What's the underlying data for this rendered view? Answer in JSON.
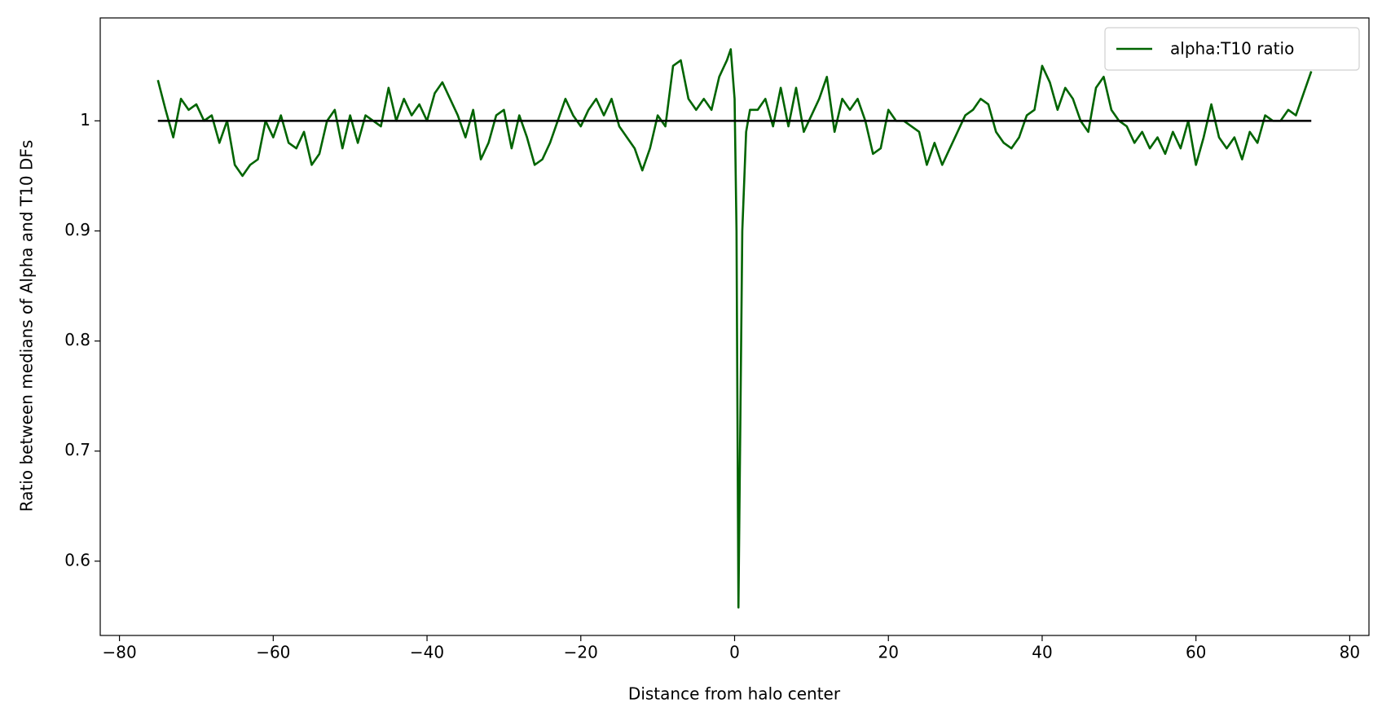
{
  "chart_data": {
    "type": "line",
    "xlabel": "Distance from halo center",
    "ylabel": "Ratio between medians of Alpha and T10 DFs",
    "x": [
      -75,
      -74,
      -73,
      -72,
      -71,
      -70,
      -69,
      -68,
      -67,
      -66,
      -65,
      -64,
      -63,
      -62,
      -61,
      -60,
      -59,
      -58,
      -57,
      -56,
      -55,
      -54,
      -53,
      -52,
      -51,
      -50,
      -49,
      -48,
      -47,
      -46,
      -45,
      -44,
      -43,
      -42,
      -41,
      -40,
      -39,
      -38,
      -37,
      -36,
      -35,
      -34,
      -33,
      -32,
      -31,
      -30,
      -29,
      -28,
      -27,
      -26,
      -25,
      -24,
      -23,
      -22,
      -21,
      -20,
      -19,
      -18,
      -17,
      -16,
      -15,
      -14,
      -13,
      -12,
      -11,
      -10,
      -9,
      -8,
      -7,
      -6,
      -5,
      -4,
      -3,
      -2,
      -1,
      -0.5,
      0,
      0.25,
      0.5,
      1,
      1.5,
      2,
      3,
      4,
      5,
      6,
      7,
      8,
      9,
      10,
      11,
      12,
      13,
      14,
      15,
      16,
      17,
      18,
      19,
      20,
      21,
      22,
      23,
      24,
      25,
      26,
      27,
      28,
      29,
      30,
      31,
      32,
      33,
      34,
      35,
      36,
      37,
      38,
      39,
      40,
      41,
      42,
      43,
      44,
      45,
      46,
      47,
      48,
      49,
      50,
      51,
      52,
      53,
      54,
      55,
      56,
      57,
      58,
      59,
      60,
      61,
      62,
      63,
      64,
      65,
      66,
      67,
      68,
      69,
      70,
      71,
      72,
      73,
      74,
      75
    ],
    "series": [
      {
        "name": "alpha:T10 ratio",
        "color": "#006400",
        "values": [
          1.037,
          1.01,
          0.985,
          1.02,
          1.01,
          1.015,
          1.0,
          1.005,
          0.98,
          1.0,
          0.96,
          0.95,
          0.96,
          0.965,
          1.0,
          0.985,
          1.005,
          0.98,
          0.975,
          0.99,
          0.96,
          0.97,
          1.0,
          1.01,
          0.975,
          1.005,
          0.98,
          1.005,
          1.0,
          0.995,
          1.03,
          1.0,
          1.02,
          1.005,
          1.015,
          1.0,
          1.025,
          1.035,
          1.02,
          1.005,
          0.985,
          1.01,
          0.965,
          0.98,
          1.005,
          1.01,
          0.975,
          1.005,
          0.985,
          0.96,
          0.965,
          0.98,
          1.0,
          1.02,
          1.005,
          0.995,
          1.01,
          1.02,
          1.005,
          1.02,
          0.995,
          0.985,
          0.975,
          0.955,
          0.975,
          1.005,
          0.995,
          1.05,
          1.055,
          1.02,
          1.01,
          1.02,
          1.01,
          1.04,
          1.055,
          1.065,
          1.02,
          0.9,
          0.558,
          0.9,
          0.99,
          1.01,
          1.01,
          1.02,
          0.995,
          1.03,
          0.995,
          1.03,
          0.99,
          1.005,
          1.02,
          1.04,
          0.99,
          1.02,
          1.01,
          1.02,
          1.0,
          0.97,
          0.975,
          1.01,
          1.0,
          1.0,
          0.995,
          0.99,
          0.96,
          0.98,
          0.96,
          0.975,
          0.99,
          1.005,
          1.01,
          1.02,
          1.015,
          0.99,
          0.98,
          0.975,
          0.985,
          1.005,
          1.01,
          1.05,
          1.035,
          1.01,
          1.03,
          1.02,
          1.0,
          0.99,
          1.03,
          1.04,
          1.01,
          1.0,
          0.995,
          0.98,
          0.99,
          0.975,
          0.985,
          0.97,
          0.99,
          0.975,
          1.0,
          0.96,
          0.985,
          1.015,
          0.985,
          0.975,
          0.985,
          0.965,
          0.99,
          0.98,
          1.005,
          1.0,
          1.0,
          1.01,
          1.005,
          1.025,
          1.045
        ]
      }
    ],
    "reference_line": {
      "y": 1.0,
      "xmin": -75,
      "xmax": 75,
      "color": "#000000"
    },
    "xlim": [
      -82.5,
      82.5
    ],
    "ylim": [
      0.5325,
      1.0935
    ],
    "xticks": [
      {
        "value": -80,
        "label": "−80"
      },
      {
        "value": -60,
        "label": "−60"
      },
      {
        "value": -40,
        "label": "−40"
      },
      {
        "value": -20,
        "label": "−20"
      },
      0,
      20,
      40,
      60,
      80
    ],
    "yticks": [
      0.6,
      0.7,
      0.8,
      0.9,
      1.0
    ],
    "legend": "upper right"
  }
}
